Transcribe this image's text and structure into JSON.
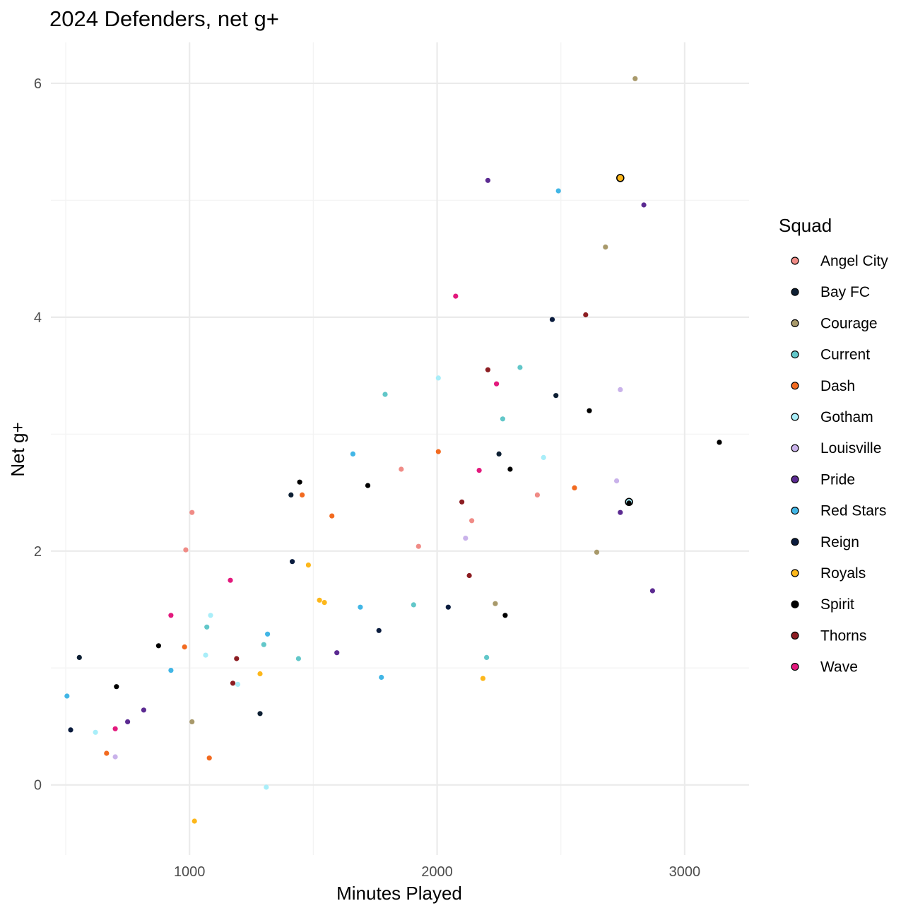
{
  "chart_data": {
    "type": "scatter",
    "title": "2024 Defenders, net g+",
    "xlabel": "Minutes Played",
    "ylabel": "Net g+",
    "xlim": [
      440,
      3260
    ],
    "ylim": [
      -0.6,
      6.35
    ],
    "x_ticks": [
      1000,
      2000,
      3000
    ],
    "y_ticks": [
      0,
      2,
      4,
      6
    ],
    "grid": true,
    "legend": {
      "title": "Squad",
      "position": "right"
    },
    "series": [
      {
        "name": "Angel City",
        "color": "#F08B86",
        "points": [
          [
            1010,
            2.33
          ],
          [
            985,
            2.01
          ],
          [
            1855,
            2.7
          ],
          [
            1925,
            2.04
          ],
          [
            2140,
            2.26
          ],
          [
            2405,
            2.48
          ]
        ]
      },
      {
        "name": "Bay FC",
        "color": "#0D1F33",
        "points": [
          [
            555,
            1.09
          ],
          [
            1410,
            2.48
          ],
          [
            2250,
            2.83
          ],
          [
            2480,
            3.33
          ],
          [
            1285,
            0.61
          ]
        ]
      },
      {
        "name": "Courage",
        "color": "#A8996A",
        "points": [
          [
            2800,
            6.04
          ],
          [
            2680,
            4.6
          ],
          [
            2235,
            1.55
          ],
          [
            2645,
            1.99
          ],
          [
            1010,
            0.54
          ]
        ]
      },
      {
        "name": "Current",
        "color": "#62C7C9",
        "points": [
          [
            1790,
            3.34
          ],
          [
            2335,
            3.57
          ],
          [
            2265,
            3.13
          ],
          [
            1070,
            1.35
          ],
          [
            1300,
            1.2
          ],
          [
            1440,
            1.08
          ],
          [
            1905,
            1.54
          ],
          [
            2200,
            1.09
          ]
        ]
      },
      {
        "name": "Dash",
        "color": "#F26A1F",
        "points": [
          [
            2005,
            2.85
          ],
          [
            1455,
            2.48
          ],
          [
            1575,
            2.3
          ],
          [
            2555,
            2.54
          ],
          [
            980,
            1.18
          ],
          [
            665,
            0.27
          ],
          [
            1080,
            0.23
          ]
        ]
      },
      {
        "name": "Gotham",
        "color": "#A9EEF9",
        "points": [
          [
            2005,
            3.48
          ],
          [
            2430,
            2.8
          ],
          [
            1085,
            1.45
          ],
          [
            1065,
            1.11
          ],
          [
            1195,
            0.86
          ],
          [
            620,
            0.45
          ],
          [
            1310,
            -0.02
          ],
          [
            2775,
            2.42
          ]
        ]
      },
      {
        "name": "Louisville",
        "color": "#C9B2EA",
        "points": [
          [
            2740,
            3.38
          ],
          [
            2725,
            2.6
          ],
          [
            2115,
            2.11
          ],
          [
            700,
            0.24
          ]
        ]
      },
      {
        "name": "Pride",
        "color": "#5B2A91",
        "points": [
          [
            2205,
            5.17
          ],
          [
            2835,
            4.96
          ],
          [
            2740,
            2.33
          ],
          [
            2870,
            1.66
          ],
          [
            1595,
            1.13
          ],
          [
            815,
            0.64
          ],
          [
            750,
            0.54
          ]
        ]
      },
      {
        "name": "Red Stars",
        "color": "#41B6E6",
        "points": [
          [
            2490,
            5.08
          ],
          [
            1660,
            2.83
          ],
          [
            1690,
            1.52
          ],
          [
            1775,
            0.92
          ],
          [
            1315,
            1.29
          ],
          [
            925,
            0.98
          ],
          [
            505,
            0.76
          ]
        ]
      },
      {
        "name": "Reign",
        "color": "#0A1C3E",
        "points": [
          [
            2465,
            3.98
          ],
          [
            1415,
            1.91
          ],
          [
            1765,
            1.32
          ],
          [
            2045,
            1.52
          ],
          [
            520,
            0.47
          ]
        ]
      },
      {
        "name": "Royals",
        "color": "#FDB71A",
        "points": [
          [
            2740,
            5.19
          ],
          [
            1480,
            1.88
          ],
          [
            1525,
            1.58
          ],
          [
            1545,
            1.56
          ],
          [
            1285,
            0.95
          ],
          [
            2185,
            0.91
          ],
          [
            1020,
            -0.31
          ]
        ]
      },
      {
        "name": "Spirit",
        "color": "#000000",
        "points": [
          [
            3140,
            2.93
          ],
          [
            2615,
            3.2
          ],
          [
            2295,
            2.7
          ],
          [
            1445,
            2.59
          ],
          [
            1720,
            2.56
          ],
          [
            2775,
            2.41
          ],
          [
            2275,
            1.45
          ],
          [
            875,
            1.19
          ],
          [
            705,
            0.84
          ]
        ]
      },
      {
        "name": "Thorns",
        "color": "#8C1D22",
        "points": [
          [
            2600,
            4.02
          ],
          [
            2205,
            3.55
          ],
          [
            2100,
            2.42
          ],
          [
            2130,
            1.79
          ],
          [
            1190,
            1.08
          ],
          [
            1175,
            0.87
          ]
        ]
      },
      {
        "name": "Wave",
        "color": "#E3197D",
        "points": [
          [
            2075,
            4.18
          ],
          [
            2240,
            3.43
          ],
          [
            2170,
            2.69
          ],
          [
            1165,
            1.75
          ],
          [
            925,
            1.45
          ],
          [
            700,
            0.48
          ]
        ]
      }
    ],
    "highlighted": [
      {
        "series": "Royals",
        "x": 2740,
        "y": 5.19
      },
      {
        "series": "Gotham",
        "x": 2775,
        "y": 2.42
      }
    ]
  }
}
